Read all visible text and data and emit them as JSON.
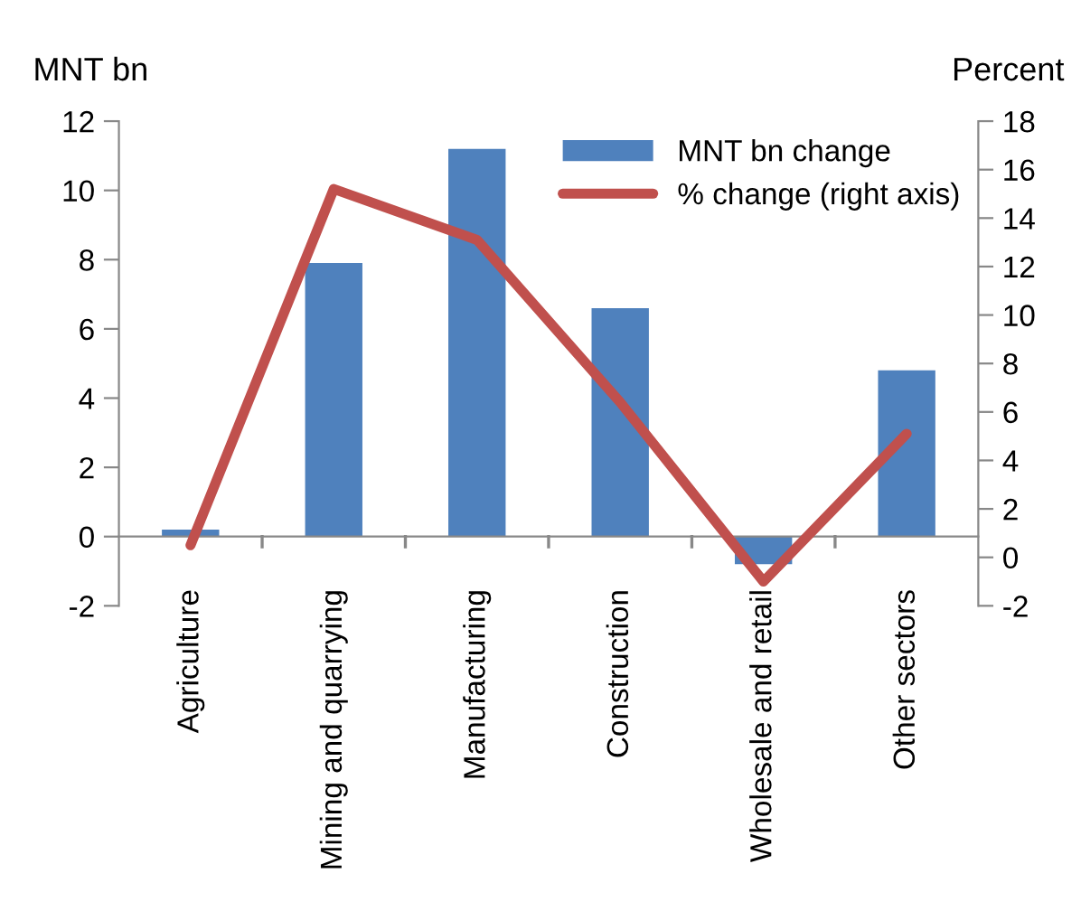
{
  "chart_data": {
    "type": "bar",
    "ylabel": "MNT bn",
    "y2label": "Percent",
    "categories": [
      "Agriculture",
      "Mining and quarrying",
      "Manufacturing",
      "Construction",
      "Wholesale and retail",
      "Other sectors"
    ],
    "series": [
      {
        "name": "MNT bn change",
        "color": "#4f81bd",
        "values": [
          0.2,
          7.9,
          11.2,
          6.6,
          -0.8,
          4.8
        ]
      },
      {
        "name": "% change (right axis)",
        "type": "line",
        "axis": "y2",
        "color": "#c0504d",
        "values": [
          0.5,
          15.2,
          13.1,
          6.4,
          -1.0,
          5.1
        ]
      }
    ],
    "ylim": [
      -2,
      12
    ],
    "yticks": [
      -2,
      0,
      2,
      4,
      6,
      8,
      10,
      12
    ],
    "y2lim": [
      -2,
      18
    ],
    "y2ticks": [
      -2,
      0,
      2,
      4,
      6,
      8,
      10,
      12,
      14,
      16,
      18
    ],
    "legend": "top right",
    "marker": "none",
    "line_style": "solid"
  }
}
